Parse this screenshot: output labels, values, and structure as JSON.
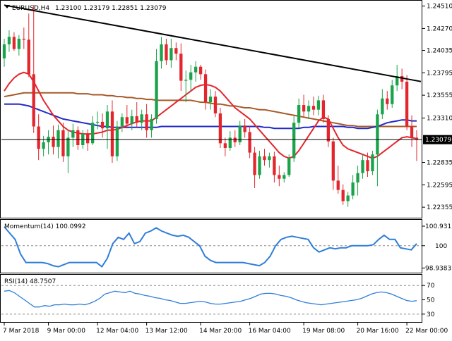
{
  "header": {
    "symbol_label": "EURUSD,H4",
    "ohlc_label": "1.23100 1.23179 1.22851 1.23079"
  },
  "panels": {
    "momentum": {
      "label": "Momentum(14) 100.0992"
    },
    "rsi": {
      "label": "RSI(14) 48.7507"
    }
  },
  "colors": {
    "bull": "#1aa34a",
    "bear": "#e3262d",
    "sma_short": "#e3262d",
    "sma_mid": "#2129c9",
    "sma_long": "#a65a2a",
    "trendline": "#000000",
    "indicator": "#2f7ed8",
    "current_price_bg": "#000000"
  },
  "chart_data": [
    {
      "type": "candlestick",
      "symbol": "EURUSD",
      "timeframe": "H4",
      "ylim": [
        1.2225,
        1.2456
      ],
      "y_ticks": [
        1.2451,
        1.2427,
        1.24035,
        1.23795,
        1.23555,
        1.2331,
        1.23079,
        1.22835,
        1.22595,
        1.22355
      ],
      "current_price": 1.23079,
      "x_tick_labels": [
        "7 Mar 2018",
        "9 Mar 00:00",
        "12 Mar 04:00",
        "13 Mar 12:00",
        "14 Mar 20:00",
        "16 Mar 04:00",
        "19 Mar 08:00",
        "20 Mar 16:00",
        "22 Mar 00:00"
      ],
      "candles": [
        {
          "o": 1.2395,
          "h": 1.2416,
          "l": 1.2386,
          "c": 1.241
        },
        {
          "o": 1.241,
          "h": 1.2425,
          "l": 1.2402,
          "c": 1.2418
        },
        {
          "o": 1.2418,
          "h": 1.2423,
          "l": 1.2403,
          "c": 1.2405
        },
        {
          "o": 1.2405,
          "h": 1.242,
          "l": 1.2398,
          "c": 1.2416
        },
        {
          "o": 1.2416,
          "h": 1.2428,
          "l": 1.2405,
          "c": 1.2415
        },
        {
          "o": 1.2415,
          "h": 1.2443,
          "l": 1.2375,
          "c": 1.2378
        },
        {
          "o": 1.2378,
          "h": 1.2452,
          "l": 1.2315,
          "c": 1.2322
        },
        {
          "o": 1.2322,
          "h": 1.2335,
          "l": 1.2286,
          "c": 1.2298
        },
        {
          "o": 1.2298,
          "h": 1.2312,
          "l": 1.229,
          "c": 1.2305
        },
        {
          "o": 1.2305,
          "h": 1.2318,
          "l": 1.2292,
          "c": 1.2311
        },
        {
          "o": 1.2311,
          "h": 1.2323,
          "l": 1.2292,
          "c": 1.23
        },
        {
          "o": 1.23,
          "h": 1.2324,
          "l": 1.2288,
          "c": 1.2318
        },
        {
          "o": 1.2318,
          "h": 1.2326,
          "l": 1.2284,
          "c": 1.229
        },
        {
          "o": 1.229,
          "h": 1.2318,
          "l": 1.2272,
          "c": 1.231
        },
        {
          "o": 1.231,
          "h": 1.2325,
          "l": 1.23,
          "c": 1.2318
        },
        {
          "o": 1.2318,
          "h": 1.2322,
          "l": 1.2297,
          "c": 1.2302
        },
        {
          "o": 1.2302,
          "h": 1.2318,
          "l": 1.2298,
          "c": 1.2314
        },
        {
          "o": 1.2314,
          "h": 1.2319,
          "l": 1.2296,
          "c": 1.2304
        },
        {
          "o": 1.2304,
          "h": 1.2333,
          "l": 1.2302,
          "c": 1.2326
        },
        {
          "o": 1.2326,
          "h": 1.2338,
          "l": 1.2319,
          "c": 1.2327
        },
        {
          "o": 1.2327,
          "h": 1.2336,
          "l": 1.231,
          "c": 1.232
        },
        {
          "o": 1.232,
          "h": 1.2345,
          "l": 1.2298,
          "c": 1.2338
        },
        {
          "o": 1.2338,
          "h": 1.235,
          "l": 1.2283,
          "c": 1.229
        },
        {
          "o": 1.229,
          "h": 1.2328,
          "l": 1.2285,
          "c": 1.2322
        },
        {
          "o": 1.2322,
          "h": 1.2336,
          "l": 1.2316,
          "c": 1.2332
        },
        {
          "o": 1.2332,
          "h": 1.2345,
          "l": 1.232,
          "c": 1.2325
        },
        {
          "o": 1.2325,
          "h": 1.234,
          "l": 1.2318,
          "c": 1.2333
        },
        {
          "o": 1.2333,
          "h": 1.2348,
          "l": 1.2321,
          "c": 1.2326
        },
        {
          "o": 1.2326,
          "h": 1.234,
          "l": 1.2318,
          "c": 1.2335
        },
        {
          "o": 1.2335,
          "h": 1.2346,
          "l": 1.231,
          "c": 1.2318
        },
        {
          "o": 1.2318,
          "h": 1.2335,
          "l": 1.231,
          "c": 1.233
        },
        {
          "o": 1.233,
          "h": 1.2405,
          "l": 1.2325,
          "c": 1.2392
        },
        {
          "o": 1.2392,
          "h": 1.2418,
          "l": 1.2384,
          "c": 1.241
        },
        {
          "o": 1.241,
          "h": 1.2416,
          "l": 1.2388,
          "c": 1.2393
        },
        {
          "o": 1.2393,
          "h": 1.2416,
          "l": 1.2385,
          "c": 1.2406
        },
        {
          "o": 1.2406,
          "h": 1.2412,
          "l": 1.2393,
          "c": 1.24
        },
        {
          "o": 1.24,
          "h": 1.2411,
          "l": 1.236,
          "c": 1.2371
        },
        {
          "o": 1.2371,
          "h": 1.2382,
          "l": 1.2348,
          "c": 1.2372
        },
        {
          "o": 1.2372,
          "h": 1.2388,
          "l": 1.236,
          "c": 1.238
        },
        {
          "o": 1.238,
          "h": 1.2392,
          "l": 1.237,
          "c": 1.2386
        },
        {
          "o": 1.2386,
          "h": 1.2388,
          "l": 1.2372,
          "c": 1.2378
        },
        {
          "o": 1.2378,
          "h": 1.2383,
          "l": 1.234,
          "c": 1.2348
        },
        {
          "o": 1.2348,
          "h": 1.2362,
          "l": 1.234,
          "c": 1.2354
        },
        {
          "o": 1.2354,
          "h": 1.236,
          "l": 1.2332,
          "c": 1.2336
        },
        {
          "o": 1.2336,
          "h": 1.2342,
          "l": 1.2299,
          "c": 1.2304
        },
        {
          "o": 1.2304,
          "h": 1.231,
          "l": 1.229,
          "c": 1.2299
        },
        {
          "o": 1.2299,
          "h": 1.2317,
          "l": 1.2296,
          "c": 1.231
        },
        {
          "o": 1.231,
          "h": 1.2318,
          "l": 1.23,
          "c": 1.2305
        },
        {
          "o": 1.2305,
          "h": 1.2328,
          "l": 1.2302,
          "c": 1.2323
        },
        {
          "o": 1.2323,
          "h": 1.233,
          "l": 1.231,
          "c": 1.2316
        },
        {
          "o": 1.2316,
          "h": 1.2322,
          "l": 1.2288,
          "c": 1.2294
        },
        {
          "o": 1.2294,
          "h": 1.23,
          "l": 1.2256,
          "c": 1.227
        },
        {
          "o": 1.227,
          "h": 1.2296,
          "l": 1.2266,
          "c": 1.229
        },
        {
          "o": 1.229,
          "h": 1.2298,
          "l": 1.228,
          "c": 1.2286
        },
        {
          "o": 1.2286,
          "h": 1.2294,
          "l": 1.2278,
          "c": 1.229
        },
        {
          "o": 1.229,
          "h": 1.2295,
          "l": 1.2262,
          "c": 1.227
        },
        {
          "o": 1.227,
          "h": 1.228,
          "l": 1.2258,
          "c": 1.2266
        },
        {
          "o": 1.2266,
          "h": 1.2273,
          "l": 1.2262,
          "c": 1.227
        },
        {
          "o": 1.227,
          "h": 1.2292,
          "l": 1.2268,
          "c": 1.2288
        },
        {
          "o": 1.2288,
          "h": 1.2333,
          "l": 1.2284,
          "c": 1.2326
        },
        {
          "o": 1.2326,
          "h": 1.2352,
          "l": 1.232,
          "c": 1.2345
        },
        {
          "o": 1.2345,
          "h": 1.2356,
          "l": 1.2332,
          "c": 1.2338
        },
        {
          "o": 1.2338,
          "h": 1.235,
          "l": 1.233,
          "c": 1.2344
        },
        {
          "o": 1.2344,
          "h": 1.2354,
          "l": 1.2334,
          "c": 1.234
        },
        {
          "o": 1.234,
          "h": 1.2355,
          "l": 1.2334,
          "c": 1.235
        },
        {
          "o": 1.235,
          "h": 1.2356,
          "l": 1.2326,
          "c": 1.233
        },
        {
          "o": 1.233,
          "h": 1.2334,
          "l": 1.23,
          "c": 1.2306
        },
        {
          "o": 1.2306,
          "h": 1.231,
          "l": 1.2254,
          "c": 1.2264
        },
        {
          "o": 1.2264,
          "h": 1.228,
          "l": 1.225,
          "c": 1.2254
        },
        {
          "o": 1.2254,
          "h": 1.226,
          "l": 1.2238,
          "c": 1.2242
        },
        {
          "o": 1.2242,
          "h": 1.2252,
          "l": 1.2236,
          "c": 1.2248
        },
        {
          "o": 1.2248,
          "h": 1.227,
          "l": 1.2244,
          "c": 1.2262
        },
        {
          "o": 1.2262,
          "h": 1.228,
          "l": 1.2248,
          "c": 1.2272
        },
        {
          "o": 1.2272,
          "h": 1.2292,
          "l": 1.2266,
          "c": 1.2286
        },
        {
          "o": 1.2286,
          "h": 1.2294,
          "l": 1.2268,
          "c": 1.2274
        },
        {
          "o": 1.2274,
          "h": 1.2296,
          "l": 1.227,
          "c": 1.2292
        },
        {
          "o": 1.2292,
          "h": 1.234,
          "l": 1.2258,
          "c": 1.2335
        },
        {
          "o": 1.2335,
          "h": 1.2362,
          "l": 1.233,
          "c": 1.2352
        },
        {
          "o": 1.2352,
          "h": 1.236,
          "l": 1.234,
          "c": 1.2346
        },
        {
          "o": 1.2346,
          "h": 1.2372,
          "l": 1.2342,
          "c": 1.2366
        },
        {
          "o": 1.2366,
          "h": 1.2388,
          "l": 1.236,
          "c": 1.2376
        },
        {
          "o": 1.2376,
          "h": 1.2384,
          "l": 1.2362,
          "c": 1.237
        },
        {
          "o": 1.237,
          "h": 1.2377,
          "l": 1.2318,
          "c": 1.2322
        },
        {
          "o": 1.2322,
          "h": 1.2334,
          "l": 1.23,
          "c": 1.231
        },
        {
          "o": 1.231,
          "h": 1.2318,
          "l": 1.2285,
          "c": 1.2308
        }
      ],
      "sma_short": [
        1.236,
        1.2368,
        1.2374,
        1.2378,
        1.238,
        1.2378,
        1.237,
        1.236,
        1.235,
        1.2342,
        1.2334,
        1.2328,
        1.2322,
        1.2318,
        1.2316,
        1.2315,
        1.2314,
        1.2314,
        1.2314,
        1.2315,
        1.2316,
        1.2318,
        1.2318,
        1.2319,
        1.2321,
        1.2323,
        1.2325,
        1.2327,
        1.2328,
        1.2328,
        1.2328,
        1.2332,
        1.2336,
        1.234,
        1.2344,
        1.2348,
        1.2352,
        1.2356,
        1.236,
        1.2364,
        1.2366,
        1.2367,
        1.2366,
        1.2364,
        1.236,
        1.2354,
        1.2348,
        1.2342,
        1.2338,
        1.2334,
        1.233,
        1.2324,
        1.2318,
        1.2312,
        1.2306,
        1.23,
        1.2294,
        1.229,
        1.2288,
        1.229,
        1.2296,
        1.2304,
        1.2312,
        1.232,
        1.2328,
        1.2332,
        1.233,
        1.232,
        1.231,
        1.2302,
        1.2298,
        1.2296,
        1.2294,
        1.2292,
        1.229,
        1.2288,
        1.229,
        1.2294,
        1.2298,
        1.2302,
        1.2306,
        1.231,
        1.2311,
        1.231,
        1.2309
      ],
      "sma_mid": [
        1.2346,
        1.2346,
        1.2346,
        1.2346,
        1.2345,
        1.2344,
        1.2342,
        1.234,
        1.2338,
        1.2336,
        1.2334,
        1.2332,
        1.233,
        1.2329,
        1.2328,
        1.2327,
        1.2326,
        1.2325,
        1.2324,
        1.2323,
        1.2322,
        1.2322,
        1.2321,
        1.2321,
        1.2321,
        1.2321,
        1.2321,
        1.2321,
        1.2321,
        1.2321,
        1.2321,
        1.2321,
        1.2322,
        1.2322,
        1.2322,
        1.2322,
        1.2322,
        1.2322,
        1.2322,
        1.2322,
        1.2322,
        1.2322,
        1.2322,
        1.2322,
        1.2322,
        1.2322,
        1.2322,
        1.2322,
        1.2322,
        1.2322,
        1.2322,
        1.2322,
        1.2322,
        1.2321,
        1.2321,
        1.232,
        1.232,
        1.232,
        1.232,
        1.232,
        1.232,
        1.2321,
        1.2321,
        1.2322,
        1.2322,
        1.2322,
        1.2322,
        1.2322,
        1.2322,
        1.2322,
        1.2321,
        1.2321,
        1.232,
        1.232,
        1.232,
        1.2321,
        1.2322,
        1.2324,
        1.2326,
        1.2327,
        1.2328,
        1.2329,
        1.2329,
        1.2328,
        1.2328
      ],
      "sma_long": [
        1.2354,
        1.2355,
        1.2356,
        1.2357,
        1.2358,
        1.2358,
        1.2358,
        1.2358,
        1.2358,
        1.2358,
        1.2358,
        1.2358,
        1.2358,
        1.2358,
        1.2358,
        1.2357,
        1.2357,
        1.2357,
        1.2356,
        1.2356,
        1.2356,
        1.2355,
        1.2355,
        1.2354,
        1.2354,
        1.2353,
        1.2353,
        1.2352,
        1.2352,
        1.2351,
        1.2351,
        1.235,
        1.235,
        1.235,
        1.235,
        1.235,
        1.235,
        1.235,
        1.235,
        1.2349,
        1.2348,
        1.2348,
        1.2347,
        1.2346,
        1.2346,
        1.2345,
        1.2344,
        1.2344,
        1.2343,
        1.2342,
        1.2342,
        1.2341,
        1.234,
        1.234,
        1.2339,
        1.2338,
        1.2337,
        1.2336,
        1.2335,
        1.2334,
        1.2333,
        1.2332,
        1.2331,
        1.233,
        1.2329,
        1.2328,
        1.2327,
        1.2326,
        1.2325,
        1.2324,
        1.2323,
        1.2323,
        1.2322,
        1.2322,
        1.2322,
        1.2322,
        1.2322,
        1.2322,
        1.2322,
        1.2322,
        1.2322,
        1.2322,
        1.2322,
        1.2322,
        1.2322
      ],
      "trendline": [
        {
          "i": 0,
          "price": 1.2452
        },
        {
          "i": 84,
          "price": 1.2371
        }
      ]
    },
    {
      "type": "line",
      "name": "Momentum(14)",
      "ylim": [
        98.75,
        101.2
      ],
      "y_ticks": [
        100.9312,
        100,
        98.9383
      ],
      "reference_level": 100,
      "values": [
        100.9,
        100.6,
        100.3,
        99.6,
        99.2,
        99.2,
        99.2,
        99.2,
        99.15,
        99.05,
        99.0,
        99.1,
        99.2,
        99.2,
        99.2,
        99.2,
        99.2,
        99.2,
        99.0,
        99.4,
        100.1,
        100.4,
        100.3,
        100.6,
        100.1,
        100.2,
        100.6,
        100.7,
        100.85,
        100.7,
        100.6,
        100.5,
        100.45,
        100.5,
        100.4,
        100.2,
        100.0,
        99.5,
        99.3,
        99.2,
        99.2,
        99.2,
        99.2,
        99.2,
        99.2,
        99.15,
        99.1,
        99.05,
        99.2,
        99.5,
        100.0,
        100.3,
        100.4,
        100.45,
        100.4,
        100.35,
        100.3,
        99.9,
        99.7,
        99.8,
        99.9,
        99.85,
        99.9,
        99.9,
        100.0,
        100.0,
        100.0,
        100.0,
        100.05,
        100.3,
        100.5,
        100.3,
        100.3,
        99.9,
        99.85,
        99.8,
        100.1
      ]
    },
    {
      "type": "line",
      "name": "RSI(14)",
      "ylim": [
        20,
        84
      ],
      "y_ticks": [
        70,
        50,
        30
      ],
      "levels": [
        70,
        30
      ],
      "values": [
        62,
        63,
        60,
        55,
        50,
        45,
        40,
        40,
        42,
        41,
        43,
        43,
        44,
        43,
        43,
        44,
        43,
        45,
        48,
        52,
        58,
        60,
        62,
        61,
        60,
        62,
        59,
        58,
        56,
        55,
        53,
        52,
        50,
        49,
        47,
        45,
        45,
        46,
        47,
        48,
        47,
        45,
        44,
        44,
        45,
        46,
        47,
        48,
        50,
        52,
        55,
        58,
        59,
        59,
        58,
        56,
        55,
        53,
        50,
        48,
        46,
        45,
        44,
        43,
        44,
        45,
        46,
        47,
        48,
        49,
        50,
        52,
        55,
        58,
        60,
        61,
        60,
        58,
        55,
        52,
        49,
        48,
        48.75
      ]
    }
  ]
}
